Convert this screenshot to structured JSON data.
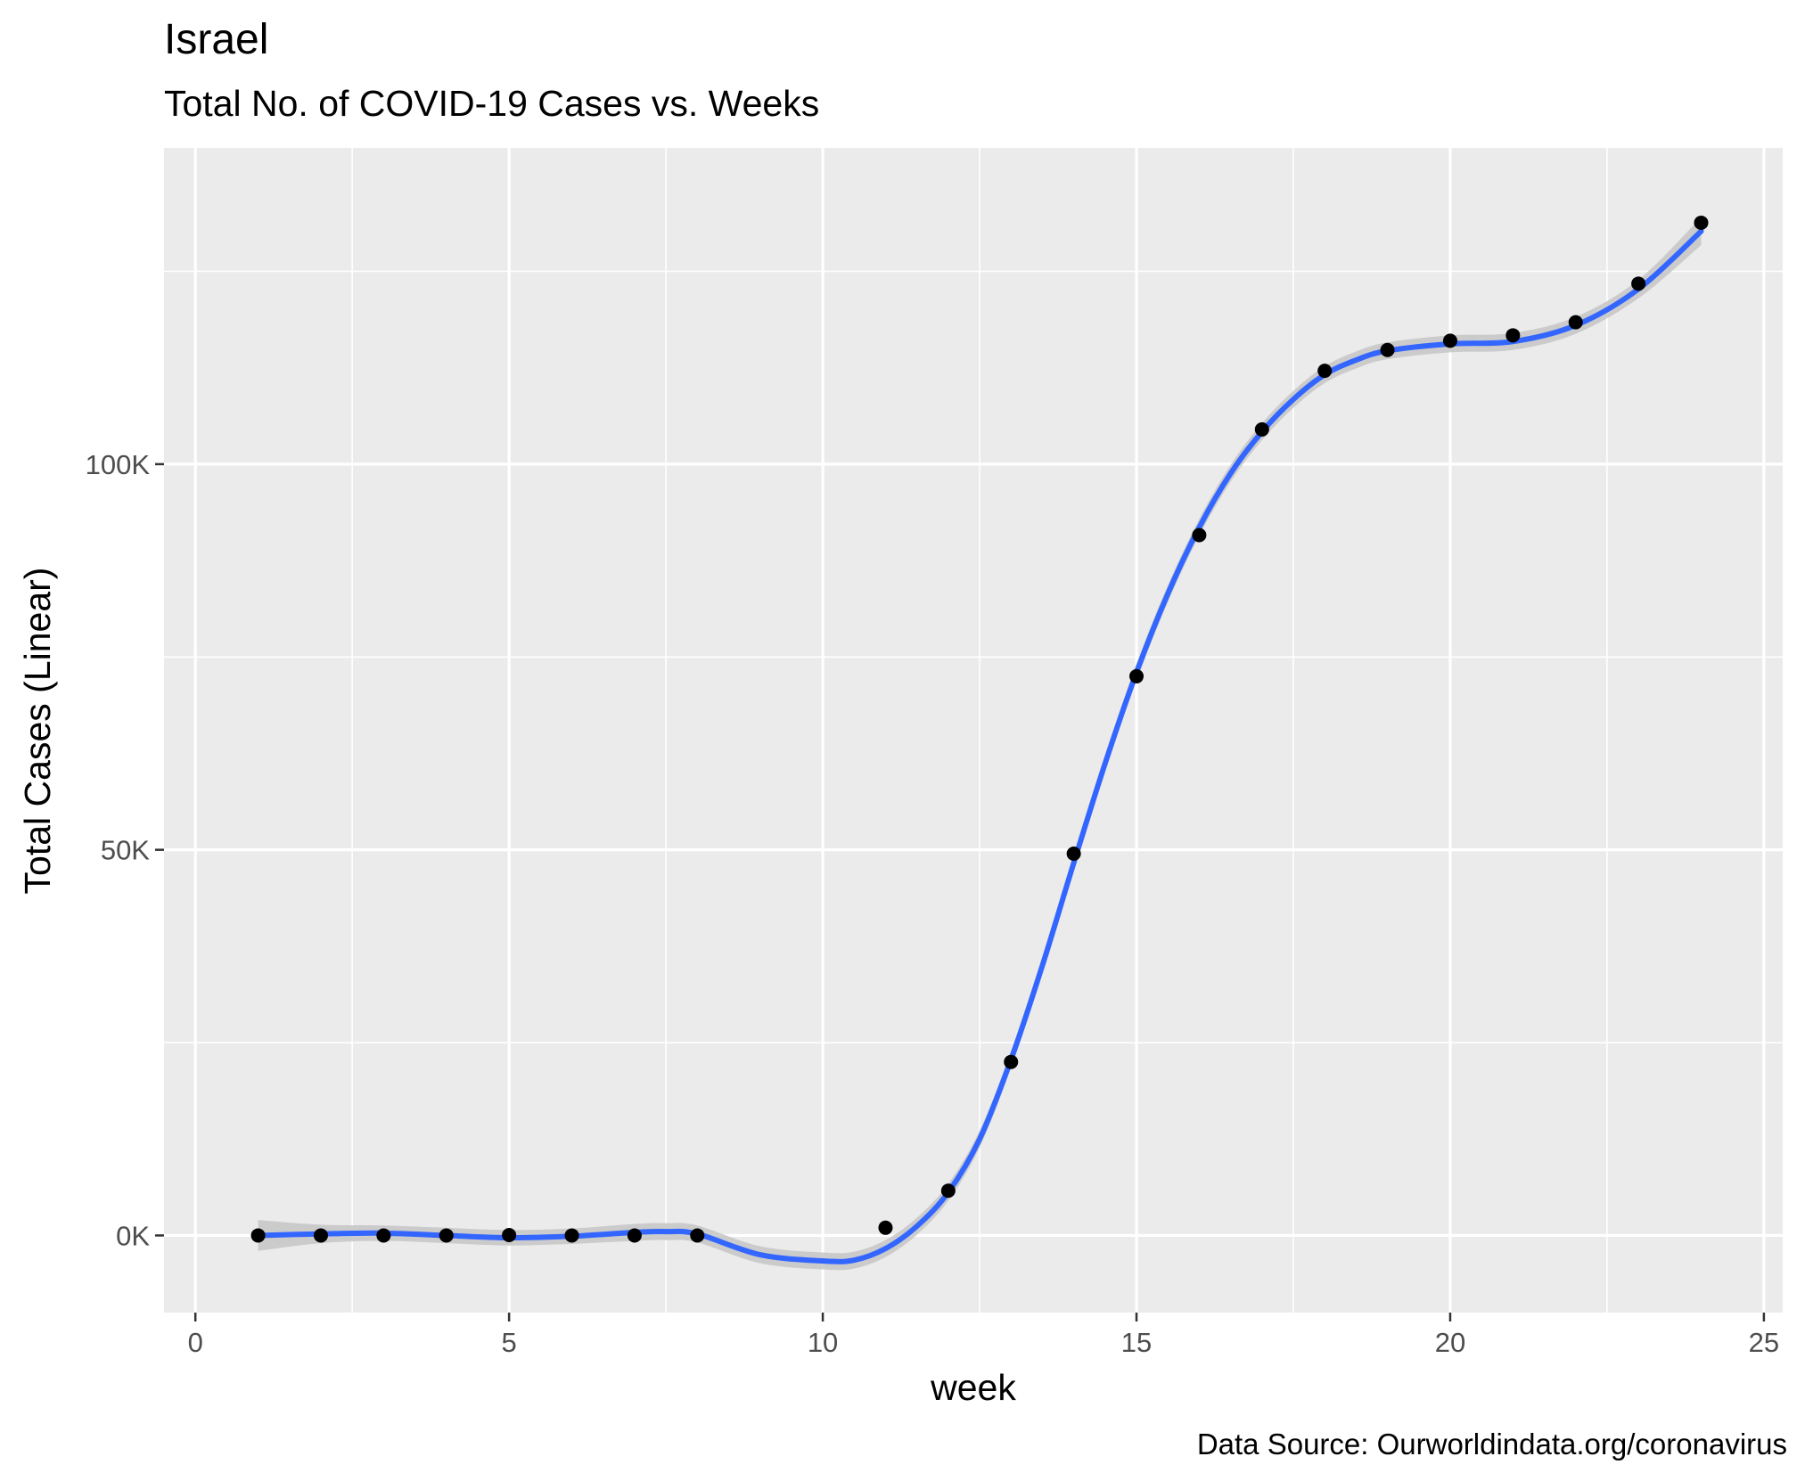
{
  "chart_data": {
    "type": "scatter",
    "title": "Israel",
    "subtitle": "Total No. of COVID-19 Cases vs. Weeks",
    "xlabel": "week",
    "ylabel": "Total Cases (Linear)",
    "caption": "Data Source: Ourworldindata.org/coronavirus",
    "xlim": [
      -0.5,
      25.3
    ],
    "ylim": [
      -10000,
      141000
    ],
    "x_ticks": [
      0,
      5,
      10,
      15,
      20,
      25
    ],
    "x_tick_labels": [
      "0",
      "5",
      "10",
      "15",
      "20",
      "25"
    ],
    "y_ticks": [
      0,
      50000,
      100000
    ],
    "y_tick_labels": [
      "0K",
      "50K",
      "100K"
    ],
    "grid": true,
    "series": [
      {
        "type": "points",
        "color": "#000000",
        "x": [
          1,
          2,
          3,
          4,
          5,
          6,
          7,
          8,
          11,
          12,
          13,
          14,
          15,
          16,
          17,
          18,
          19,
          20,
          21,
          22,
          23,
          24
        ],
        "y": [
          0,
          0,
          0,
          0,
          50,
          0,
          0,
          0,
          1000,
          5800,
          22500,
          49500,
          72500,
          90800,
          104500,
          112100,
          114800,
          116000,
          116700,
          118400,
          123400,
          131300
        ]
      },
      {
        "type": "smooth",
        "color": "#3366ff",
        "band_color": "#c8c8c8",
        "x": [
          1,
          2,
          3,
          4,
          5,
          6,
          7,
          7.5,
          8,
          9,
          10,
          10.5,
          11,
          11.5,
          12,
          12.5,
          13,
          13.5,
          14,
          14.5,
          15,
          15.5,
          16,
          16.5,
          17,
          17.5,
          18,
          18.5,
          19,
          20,
          21,
          22,
          23,
          24
        ],
        "y": [
          0,
          200,
          300,
          0,
          -300,
          -100,
          400,
          500,
          200,
          -2500,
          -3300,
          -3200,
          -1700,
          1200,
          5600,
          12500,
          22800,
          35000,
          48300,
          61200,
          73000,
          83200,
          91800,
          98800,
          104200,
          108400,
          111600,
          113500,
          114700,
          115600,
          115900,
          118000,
          122700,
          130200
        ],
        "band": [
          2000,
          1200,
          1000,
          1000,
          1000,
          1000,
          1100,
          1100,
          1100,
          1100,
          1100,
          1100,
          1100,
          1100,
          1100,
          1100,
          1100,
          1100,
          1100,
          1100,
          1100,
          1100,
          1100,
          1100,
          1100,
          1100,
          1100,
          1100,
          1100,
          1100,
          1100,
          1100,
          1200,
          1800
        ]
      }
    ]
  }
}
